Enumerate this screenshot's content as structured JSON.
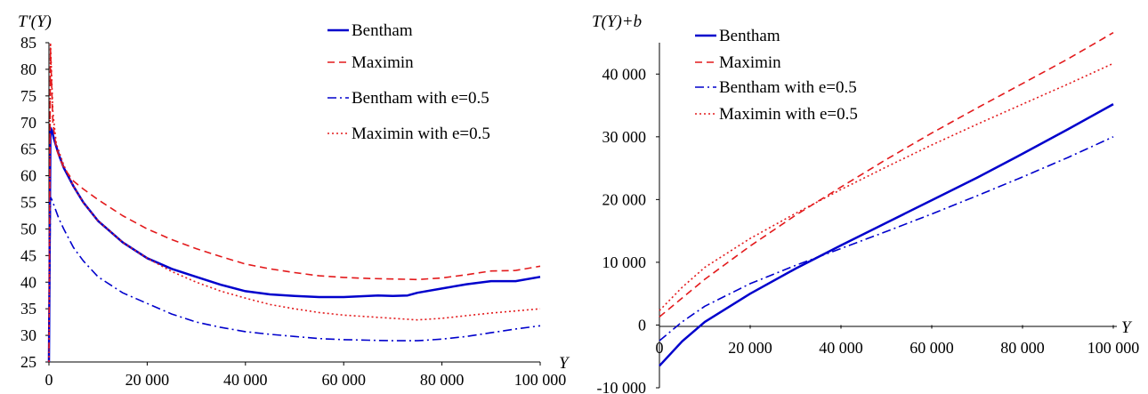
{
  "chart_data": [
    {
      "type": "line",
      "ylabel": "T'(Y)",
      "xlabel": "Y",
      "xlim": [
        0,
        100000
      ],
      "ylim": [
        25,
        85
      ],
      "xticks": [
        0,
        20000,
        40000,
        60000,
        80000,
        100000
      ],
      "xtick_labels": [
        "0",
        "20 000",
        "40 000",
        "60 000",
        "80 000",
        "100 000"
      ],
      "yticks": [
        25,
        30,
        35,
        40,
        45,
        50,
        55,
        60,
        65,
        70,
        75,
        80,
        85
      ],
      "ytick_labels": [
        "25",
        "30",
        "35",
        "40",
        "45",
        "50",
        "55",
        "60",
        "65",
        "70",
        "75",
        "80",
        "85"
      ],
      "legend_position": "top-right",
      "series": [
        {
          "name": "Bentham",
          "color": "#0000cc",
          "dash": "solid",
          "x": [
            0,
            300,
            600,
            1000,
            2000,
            3000,
            5000,
            7000,
            10000,
            15000,
            20000,
            25000,
            30000,
            35000,
            40000,
            45000,
            50000,
            55000,
            60000,
            65000,
            67000,
            70000,
            73000,
            75000,
            80000,
            85000,
            90000,
            95000,
            100000
          ],
          "y": [
            25,
            69,
            68.5,
            67,
            64,
            61.5,
            58,
            55,
            51.5,
            47.5,
            44.5,
            42.5,
            41,
            39.5,
            38.3,
            37.7,
            37.4,
            37.2,
            37.2,
            37.4,
            37.5,
            37.4,
            37.5,
            38,
            38.8,
            39.6,
            40.2,
            40.2,
            41
          ]
        },
        {
          "name": "Maximin",
          "color": "#e31a1c",
          "dash": "dashed",
          "x": [
            0,
            300,
            800,
            1500,
            3000,
            5000,
            7000,
            10000,
            15000,
            20000,
            25000,
            30000,
            35000,
            40000,
            45000,
            50000,
            55000,
            60000,
            65000,
            70000,
            75000,
            80000,
            85000,
            90000,
            95000,
            100000
          ],
          "y": [
            25,
            84,
            70,
            65,
            61.5,
            59,
            57.5,
            55.5,
            52.5,
            50,
            48,
            46.3,
            44.8,
            43.4,
            42.5,
            41.8,
            41.2,
            40.9,
            40.7,
            40.6,
            40.5,
            40.8,
            41.4,
            42.1,
            42.2,
            43
          ]
        },
        {
          "name": "Bentham with e=0.5",
          "color": "#0000cc",
          "dash": "dashdot",
          "x": [
            0,
            300,
            600,
            1000,
            2000,
            3000,
            5000,
            7000,
            10000,
            15000,
            20000,
            25000,
            30000,
            35000,
            40000,
            45000,
            50000,
            55000,
            60000,
            65000,
            70000,
            75000,
            80000,
            85000,
            90000,
            95000,
            100000
          ],
          "y": [
            25,
            56,
            55.5,
            54.5,
            52,
            50,
            46.5,
            44,
            41,
            38,
            36,
            34,
            32.5,
            31.5,
            30.7,
            30.2,
            29.8,
            29.4,
            29.2,
            29.1,
            29.0,
            29.0,
            29.3,
            29.8,
            30.5,
            31.2,
            31.8
          ]
        },
        {
          "name": "Maximin with e=0.5",
          "color": "#e31a1c",
          "dash": "dotted",
          "x": [
            0,
            300,
            800,
            1500,
            3000,
            5000,
            7000,
            10000,
            15000,
            20000,
            25000,
            30000,
            35000,
            40000,
            45000,
            50000,
            55000,
            60000,
            65000,
            70000,
            75000,
            80000,
            85000,
            90000,
            95000,
            100000
          ],
          "y": [
            25,
            85,
            72,
            66,
            62,
            58,
            55,
            51.5,
            47.5,
            44.5,
            42,
            40,
            38.3,
            37,
            35.8,
            35,
            34.3,
            33.8,
            33.5,
            33.2,
            32.9,
            33.2,
            33.7,
            34.2,
            34.6,
            35
          ]
        }
      ]
    },
    {
      "type": "line",
      "ylabel": "T(Y)+b",
      "xlabel": "Y",
      "xlim": [
        0,
        100000
      ],
      "ylim": [
        -10000,
        45000
      ],
      "xticks": [
        0,
        20000,
        40000,
        60000,
        80000,
        100000
      ],
      "xtick_labels": [
        "0",
        "20 000",
        "40 000",
        "60 000",
        "80 000",
        "100 000"
      ],
      "yticks": [
        -10000,
        0,
        10000,
        20000,
        30000,
        40000
      ],
      "ytick_labels": [
        "-10 000",
        "0",
        "10 000",
        "20 000",
        "30 000",
        "40 000"
      ],
      "legend_position": "top-left",
      "series": [
        {
          "name": "Bentham",
          "color": "#0000cc",
          "dash": "solid",
          "x": [
            0,
            5000,
            10000,
            20000,
            30000,
            40000,
            50000,
            60000,
            70000,
            80000,
            90000,
            100000
          ],
          "y": [
            -6500,
            -2600,
            500,
            5000,
            9000,
            12700,
            16300,
            19900,
            23500,
            27300,
            31200,
            35200
          ]
        },
        {
          "name": "Maximin",
          "color": "#e31a1c",
          "dash": "dashed",
          "x": [
            0,
            5000,
            10000,
            20000,
            30000,
            40000,
            50000,
            60000,
            70000,
            80000,
            90000,
            100000
          ],
          "y": [
            1300,
            4300,
            7300,
            12600,
            17500,
            22000,
            26400,
            30600,
            34600,
            38500,
            42400,
            46600
          ]
        },
        {
          "name": "Bentham with e=0.5",
          "color": "#0000cc",
          "dash": "dashdot",
          "x": [
            0,
            5000,
            10000,
            20000,
            30000,
            40000,
            50000,
            60000,
            70000,
            80000,
            90000,
            100000
          ],
          "y": [
            -2500,
            500,
            3000,
            6600,
            9500,
            12200,
            14900,
            17700,
            20600,
            23600,
            26700,
            30000
          ]
        },
        {
          "name": "Maximin with e=0.5",
          "color": "#e31a1c",
          "dash": "dotted",
          "x": [
            0,
            5000,
            10000,
            20000,
            30000,
            40000,
            50000,
            60000,
            70000,
            80000,
            90000,
            100000
          ],
          "y": [
            2300,
            6000,
            9200,
            13800,
            17800,
            21600,
            25200,
            28700,
            32000,
            35200,
            38400,
            41700
          ]
        }
      ]
    }
  ]
}
